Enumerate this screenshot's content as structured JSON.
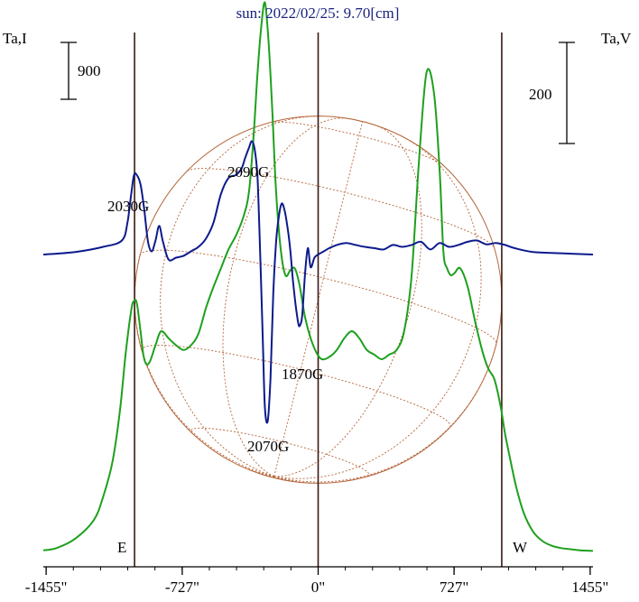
{
  "chart_data": {
    "type": "line",
    "title": "sun: 2022/02/25: 9.70[cm]",
    "left_axis_label": "Ta,I",
    "right_axis_label": "Ta,V",
    "x_ticks": [
      {
        "value": -1455,
        "label": "-1455\""
      },
      {
        "value": -727,
        "label": "-727\""
      },
      {
        "value": 0,
        "label": "0\""
      },
      {
        "value": 727,
        "label": "727\""
      },
      {
        "value": 1455,
        "label": "1455\""
      }
    ],
    "xlim": [
      -1470,
      1470
    ],
    "limb_lines": [
      {
        "x": -982,
        "label": "E"
      },
      {
        "x": 0,
        "label": ""
      },
      {
        "x": 982,
        "label": "W"
      }
    ],
    "scale_bars": [
      {
        "label": "900",
        "side": "left"
      },
      {
        "label": "200",
        "side": "right"
      }
    ],
    "annotations": [
      {
        "text": "2030G"
      },
      {
        "text": "2090G"
      },
      {
        "text": "1870G"
      },
      {
        "text": "2070G"
      }
    ],
    "colors": {
      "intensity": "#1ea01e",
      "polarization": "#0d1a8c",
      "grid": "#b5653a",
      "limb_line": "#3a1a14",
      "title": "#1a237e"
    },
    "series": [
      {
        "name": "Ta,I",
        "color": "#1ea01e",
        "x": [
          -1470,
          -1400,
          -1300,
          -1200,
          -1150,
          -1100,
          -1060,
          -1030,
          -1000,
          -985,
          -970,
          -950,
          -935,
          -920,
          -900,
          -870,
          -840,
          -800,
          -760,
          -720,
          -680,
          -640,
          -600,
          -560,
          -520,
          -480,
          -440,
          -400,
          -370,
          -345,
          -325,
          -305,
          -285,
          -265,
          -245,
          -225,
          -200,
          -175,
          -150,
          -125,
          -100,
          -70,
          -40,
          -10,
          20,
          60,
          100,
          140,
          180,
          220,
          260,
          300,
          340,
          380,
          420,
          460,
          500,
          540,
          580,
          620,
          650,
          670,
          690,
          710,
          730,
          760,
          800,
          840,
          880,
          910,
          940,
          960,
          980,
          1000,
          1030,
          1060,
          1100,
          1150,
          1200,
          1250,
          1300,
          1350,
          1400,
          1470
        ],
        "y": [
          20,
          30,
          70,
          150,
          250,
          400,
          620,
          860,
          1050,
          1090,
          1080,
          960,
          860,
          820,
          830,
          900,
          960,
          930,
          900,
          880,
          900,
          950,
          1060,
          1150,
          1230,
          1310,
          1370,
          1450,
          1560,
          1800,
          2060,
          2260,
          2370,
          2200,
          1900,
          1560,
          1310,
          1200,
          1220,
          1230,
          1160,
          1020,
          930,
          870,
          840,
          850,
          880,
          930,
          960,
          930,
          880,
          860,
          840,
          860,
          880,
          960,
          1200,
          1700,
          2070,
          1980,
          1650,
          1300,
          1230,
          1200,
          1210,
          1230,
          1150,
          1000,
          870,
          800,
          760,
          700,
          620,
          520,
          400,
          290,
          180,
          100,
          60,
          40,
          30,
          25,
          20,
          18
        ]
      },
      {
        "name": "Ta,V",
        "color": "#0d1a8c",
        "x": [
          -1470,
          -1300,
          -1150,
          -1050,
          -1020,
          -1000,
          -985,
          -970,
          -950,
          -930,
          -910,
          -890,
          -870,
          -850,
          -830,
          -800,
          -760,
          -720,
          -680,
          -640,
          -600,
          -560,
          -520,
          -480,
          -440,
          -410,
          -390,
          -370,
          -355,
          -340,
          -325,
          -315,
          -305,
          -295,
          -285,
          -270,
          -255,
          -240,
          -225,
          -210,
          -195,
          -180,
          -165,
          -150,
          -135,
          -120,
          -105,
          -95,
          -85,
          -70,
          -55,
          -40,
          -20,
          0,
          30,
          60,
          100,
          150,
          200,
          250,
          300,
          350,
          400,
          450,
          500,
          550,
          600,
          650,
          700,
          750,
          800,
          850,
          900,
          950,
          1000,
          1050,
          1150,
          1300,
          1470
        ],
        "y": [
          0,
          4,
          12,
          22,
          50,
          95,
          125,
          125,
          110,
          70,
          20,
          5,
          22,
          45,
          20,
          -8,
          -5,
          -2,
          5,
          12,
          25,
          50,
          95,
          120,
          125,
          135,
          152,
          168,
          178,
          166,
          125,
          45,
          -45,
          -145,
          -240,
          -262,
          -195,
          -60,
          20,
          60,
          80,
          70,
          45,
          10,
          -40,
          -80,
          -110,
          -110,
          -95,
          -30,
          10,
          -20,
          -5,
          0,
          5,
          10,
          15,
          18,
          15,
          12,
          10,
          8,
          15,
          12,
          15,
          20,
          8,
          18,
          12,
          15,
          20,
          22,
          16,
          18,
          15,
          10,
          4,
          2,
          0
        ]
      }
    ]
  }
}
